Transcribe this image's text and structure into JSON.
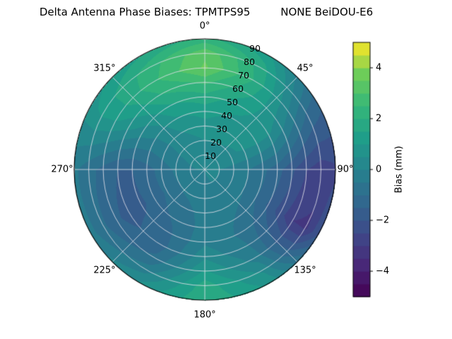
{
  "chart_data": {
    "type": "heatmap",
    "projection": "polar",
    "title": "Delta Antenna Phase Biases: TPMTPS95         NONE BeiDOU-E6",
    "azimuth_labels": [
      "0°",
      "45°",
      "90°",
      "135°",
      "180°",
      "225°",
      "270°",
      "315°"
    ],
    "radial_tick_labels": [
      "10",
      "20",
      "30",
      "40",
      "50",
      "60",
      "70",
      "80",
      "90"
    ],
    "grid_on": true,
    "colorbar": {
      "label": "Bias (mm)",
      "tick_labels": [
        "−4",
        "−2",
        "0",
        "2",
        "4"
      ],
      "tick_values": [
        -4,
        -2,
        0,
        2,
        4
      ],
      "vmin": -5,
      "vmax": 5,
      "level_step": 0.5,
      "colormap": "viridis"
    },
    "grid": {
      "azimuth_deg": [
        0,
        30,
        60,
        90,
        120,
        150,
        180,
        210,
        240,
        270,
        300,
        330
      ],
      "radius": [
        0,
        10,
        20,
        30,
        40,
        50,
        60,
        70,
        80,
        90
      ],
      "bias_mm": [
        [
          0.2,
          0.3,
          0.5,
          0.8,
          1.2,
          1.8,
          2.6,
          3.6,
          3.4,
          2.2
        ],
        [
          0.2,
          0.3,
          0.5,
          0.7,
          0.9,
          1.2,
          1.6,
          1.9,
          1.7,
          1.1
        ],
        [
          0.2,
          0.3,
          0.4,
          0.6,
          0.7,
          0.6,
          0.2,
          -0.4,
          -1.0,
          -1.4
        ],
        [
          0.1,
          0.0,
          -0.2,
          -0.5,
          -0.9,
          -1.3,
          -1.9,
          -2.5,
          -2.8,
          -2.6
        ],
        [
          0.1,
          0.0,
          -0.2,
          -0.5,
          -1.0,
          -1.6,
          -2.3,
          -3.0,
          -3.1,
          -2.0
        ],
        [
          0.1,
          0.0,
          -0.1,
          -0.3,
          -0.5,
          -0.6,
          -0.5,
          -0.2,
          0.4,
          0.9
        ],
        [
          0.0,
          -0.1,
          -0.2,
          -0.3,
          -0.3,
          -0.1,
          0.4,
          1.1,
          1.8,
          2.0
        ],
        [
          0.0,
          -0.2,
          -0.4,
          -0.7,
          -0.9,
          -1.1,
          -1.2,
          -0.9,
          -0.2,
          0.6
        ],
        [
          0.0,
          -0.2,
          -0.5,
          -0.9,
          -1.3,
          -1.6,
          -1.7,
          -1.4,
          -0.9,
          -0.3
        ],
        [
          0.1,
          -0.1,
          -0.4,
          -0.8,
          -1.2,
          -1.5,
          -1.5,
          -1.2,
          -0.8,
          -0.4
        ],
        [
          0.2,
          0.1,
          0.0,
          -0.1,
          -0.1,
          0.2,
          0.7,
          1.1,
          1.2,
          0.8
        ],
        [
          0.2,
          0.2,
          0.3,
          0.5,
          0.9,
          1.4,
          2.0,
          2.4,
          2.2,
          1.5
        ]
      ]
    }
  }
}
